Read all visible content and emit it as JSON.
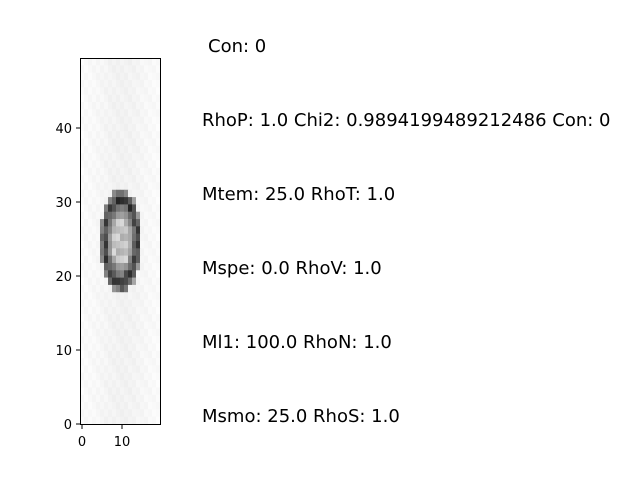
{
  "image_panel": {
    "y_ticks": [
      "0",
      "10",
      "20",
      "30",
      "40"
    ],
    "x_ticks": [
      "0",
      "10"
    ],
    "colormap": [
      "#ffffff",
      "#000000"
    ]
  },
  "labels": {
    "con": "Con: 0",
    "rhop_chi2": "RhoP: 1.0 Chi2: 0.9894199489212486 Con: 0",
    "mtem": "Mtem: 25.0 RhoT: 1.0",
    "mspe": "Mspe: 0.0 RhoV: 1.0",
    "ml1": "Ml1: 100.0 RhoN: 1.0",
    "msmo": "Msmo: 25.0 RhoS: 1.0"
  }
}
